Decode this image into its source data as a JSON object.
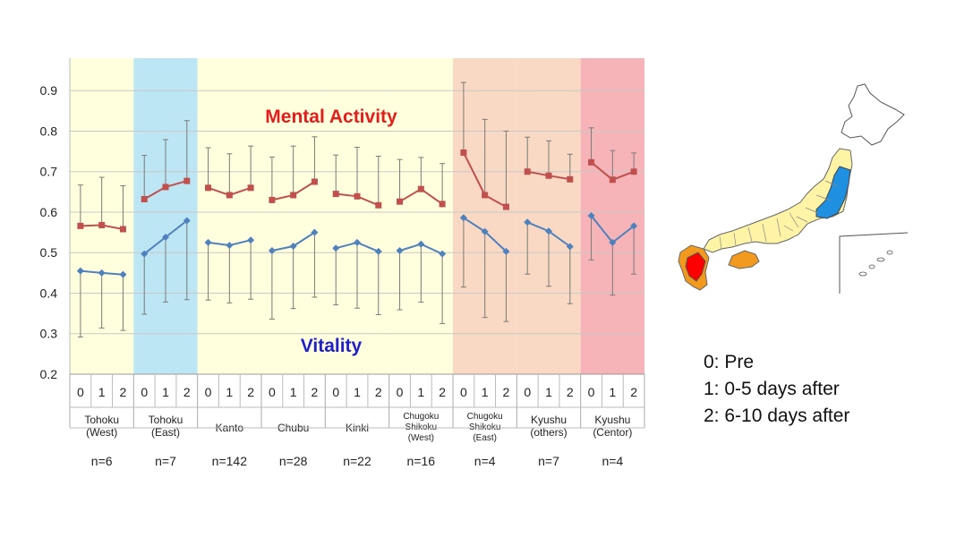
{
  "chart_data": {
    "type": "line",
    "ylim": [
      0.2,
      0.98
    ],
    "yticks": [
      0.2,
      0.3,
      0.4,
      0.5,
      0.6,
      0.7,
      0.8,
      0.9
    ],
    "x_points": [
      "0",
      "1",
      "2"
    ],
    "groups": [
      {
        "name": "Tohoku",
        "name2": "(West)",
        "n": "n=6",
        "band": "#FFFFDD"
      },
      {
        "name": "Tohoku",
        "name2": "(East)",
        "n": "n=7",
        "band": "#BDE6F4"
      },
      {
        "name": "Kanto",
        "name2": "",
        "n": "n=142",
        "band": "#FFFFDD"
      },
      {
        "name": "Chubu",
        "name2": "",
        "n": "n=28",
        "band": "#FFFFDD"
      },
      {
        "name": "Kinki",
        "name2": "",
        "n": "n=22",
        "band": "#FFFFDD"
      },
      {
        "name": "Chugoku",
        "name2": "Shikoku",
        "name3": "(West)",
        "n": "n=16",
        "band": "#FFFFDD"
      },
      {
        "name": "Chugoku",
        "name2": "Shikoku",
        "name3": "(East)",
        "n": "n=4",
        "band": "#F9D9C3"
      },
      {
        "name": "Kyushu",
        "name2": "(others)",
        "n": "n=7",
        "band": "#F9D9C3"
      },
      {
        "name": "Kyushu",
        "name2": "(Centor)",
        "n": "n=4",
        "band": "#F7B4B8"
      }
    ],
    "series": [
      {
        "name": "Mental  Activity",
        "color": "#C0504D",
        "label_color": "#E31C1C",
        "marker": "square",
        "values": [
          [
            0.566,
            0.568,
            0.558
          ],
          [
            0.632,
            0.662,
            0.677
          ],
          [
            0.66,
            0.642,
            0.66
          ],
          [
            0.63,
            0.642,
            0.675
          ],
          [
            0.645,
            0.639,
            0.617
          ],
          [
            0.626,
            0.657,
            0.62
          ],
          [
            0.747,
            0.642,
            0.613
          ],
          [
            0.7,
            0.69,
            0.681
          ],
          [
            0.723,
            0.68,
            0.7
          ]
        ],
        "upper": [
          [
            0.667,
            0.686,
            0.665
          ],
          [
            0.74,
            0.779,
            0.826
          ],
          [
            0.759,
            0.744,
            0.763
          ],
          [
            0.736,
            0.763,
            0.786
          ],
          [
            0.741,
            0.76,
            0.738
          ],
          [
            0.73,
            0.735,
            0.72
          ],
          [
            0.92,
            0.829,
            0.8
          ],
          [
            0.785,
            0.776,
            0.743
          ],
          [
            0.808,
            0.752,
            0.746
          ]
        ]
      },
      {
        "name": "Vitality",
        "color": "#4F81BD",
        "label_color": "#1F1FCC",
        "marker": "diamond",
        "values": [
          [
            0.455,
            0.45,
            0.446
          ],
          [
            0.497,
            0.538,
            0.579
          ],
          [
            0.525,
            0.518,
            0.531
          ],
          [
            0.505,
            0.516,
            0.55
          ],
          [
            0.511,
            0.525,
            0.503
          ],
          [
            0.505,
            0.521,
            0.497
          ],
          [
            0.586,
            0.552,
            0.503
          ],
          [
            0.575,
            0.553,
            0.515
          ],
          [
            0.591,
            0.525,
            0.566
          ]
        ],
        "lower": [
          [
            0.292,
            0.314,
            0.308
          ],
          [
            0.348,
            0.378,
            0.384
          ],
          [
            0.383,
            0.376,
            0.385
          ],
          [
            0.336,
            0.362,
            0.39
          ],
          [
            0.371,
            0.363,
            0.347
          ],
          [
            0.359,
            0.378,
            0.325
          ],
          [
            0.415,
            0.34,
            0.33
          ],
          [
            0.447,
            0.417,
            0.374
          ],
          [
            0.482,
            0.395,
            0.447
          ]
        ]
      }
    ]
  },
  "legend": {
    "line0": "0: Pre",
    "line1": "1: 0-5 days after",
    "line2": "2: 6-10 days after"
  },
  "map": {
    "prefectures_color": "#FFF3A6",
    "east_color": "#1F8FE0",
    "center_color": "#FF0000",
    "others_color": "#F29A1E",
    "outline_color": "#666666"
  }
}
